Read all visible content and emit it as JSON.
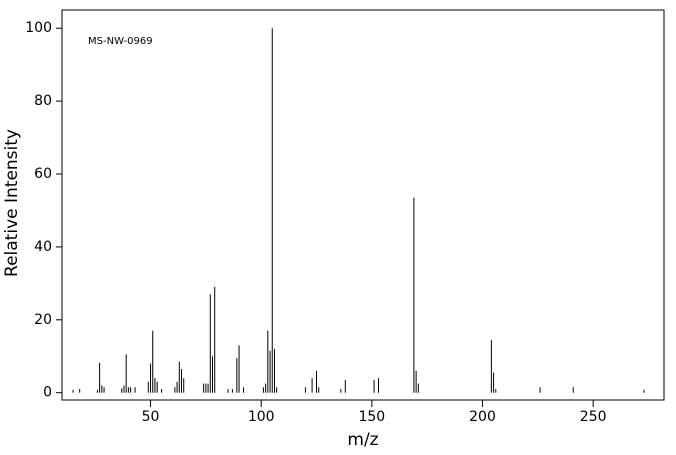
{
  "chart_data": {
    "type": "bar",
    "annotation": "MS-NW-0969",
    "xlabel": "m/z",
    "ylabel": "Relative Intensity",
    "x": [
      15,
      18,
      26,
      27,
      28,
      29,
      37,
      38,
      39,
      40,
      41,
      43,
      49,
      50,
      51,
      52,
      53,
      55,
      61,
      62,
      63,
      64,
      65,
      74,
      75,
      76,
      77,
      78,
      79,
      85,
      87,
      89,
      90,
      92,
      101,
      102,
      103,
      104,
      105,
      106,
      107,
      120,
      123,
      125,
      126,
      136,
      138,
      151,
      153,
      169,
      170,
      171,
      204,
      205,
      206,
      226,
      241,
      273
    ],
    "values": [
      0.8,
      1,
      0.8,
      8.2,
      2,
      1.5,
      1.2,
      2,
      10.5,
      1.5,
      1.5,
      1.5,
      3,
      8,
      17,
      4,
      3,
      1,
      1.5,
      3,
      8.5,
      6.5,
      4,
      2.5,
      2.5,
      2.5,
      27,
      10,
      29,
      1,
      1,
      9.5,
      13,
      1.5,
      1.5,
      2.5,
      17,
      11.5,
      100,
      12,
      1.5,
      1.5,
      4,
      6,
      1.5,
      1,
      3.5,
      3.5,
      4,
      53.5,
      6,
      2.5,
      14.5,
      5.5,
      1,
      1.5,
      1.5,
      0.8
    ],
    "color": "#000000",
    "xlim": [
      10,
      282
    ],
    "ylim": [
      -2,
      105
    ],
    "xticks": [
      50,
      100,
      150,
      200,
      250
    ],
    "yticks": [
      0,
      20,
      40,
      60,
      80,
      100
    ]
  }
}
